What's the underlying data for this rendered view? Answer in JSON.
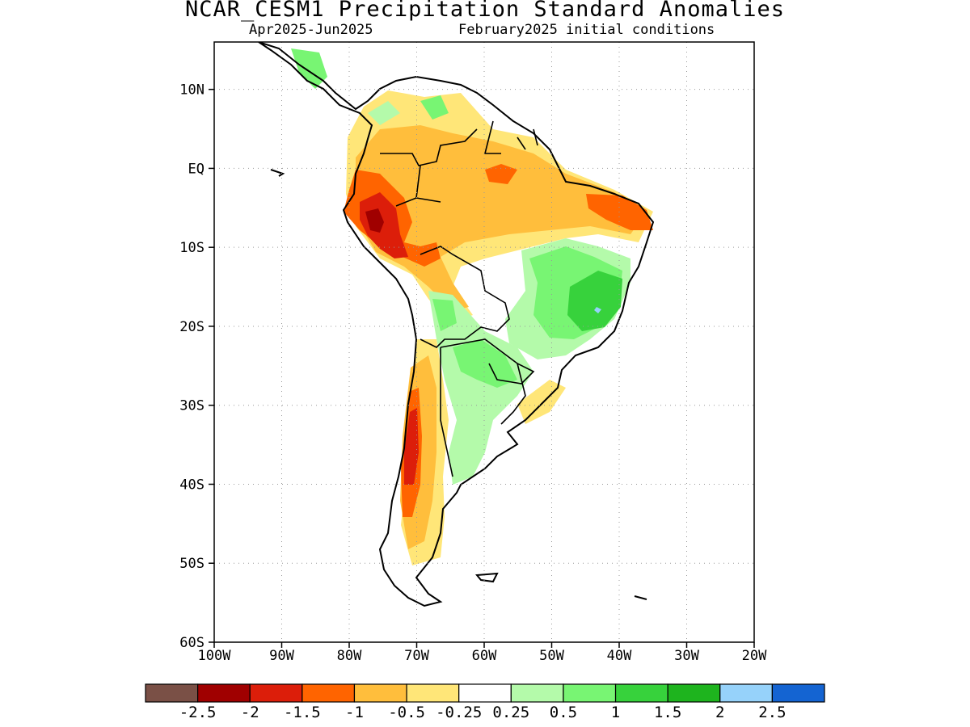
{
  "header": {
    "title": "NCAR_CESM1 Precipitation Standard Anomalies",
    "period": "Apr2025-Jun2025",
    "init": "February2025 initial conditions"
  },
  "map": {
    "lat_labels": [
      {
        "lat": 10,
        "label": "10N"
      },
      {
        "lat": 0,
        "label": "EQ"
      },
      {
        "lat": -10,
        "label": "10S"
      },
      {
        "lat": -20,
        "label": "20S"
      },
      {
        "lat": -30,
        "label": "30S"
      },
      {
        "lat": -40,
        "label": "40S"
      },
      {
        "lat": -50,
        "label": "50S"
      },
      {
        "lat": -60,
        "label": "60S"
      }
    ],
    "lon_labels": [
      {
        "lon": -100,
        "label": "100W"
      },
      {
        "lon": -90,
        "label": "90W"
      },
      {
        "lon": -80,
        "label": "80W"
      },
      {
        "lon": -70,
        "label": "70W"
      },
      {
        "lon": -60,
        "label": "60W"
      },
      {
        "lon": -50,
        "label": "50W"
      },
      {
        "lon": -40,
        "label": "40W"
      },
      {
        "lon": -30,
        "label": "30W"
      },
      {
        "lon": -20,
        "label": "20W"
      }
    ],
    "lon_range": [
      -100,
      -20
    ],
    "lat_range": [
      -60,
      16
    ]
  },
  "colorbar": {
    "colors": [
      "#7a5046",
      "#a00000",
      "#dc1e0a",
      "#ff6400",
      "#ffbe3c",
      "#ffe678",
      "#ffffff",
      "#b4faaa",
      "#78f573",
      "#37d23c",
      "#1eb41e",
      "#96d2fa",
      "#1464d2"
    ],
    "labels": [
      "-2.5",
      "-2",
      "-1.5",
      "-1",
      "-0.5",
      "-0.25",
      "0.25",
      "0.5",
      "1",
      "1.5",
      "2",
      "2.5"
    ]
  }
}
